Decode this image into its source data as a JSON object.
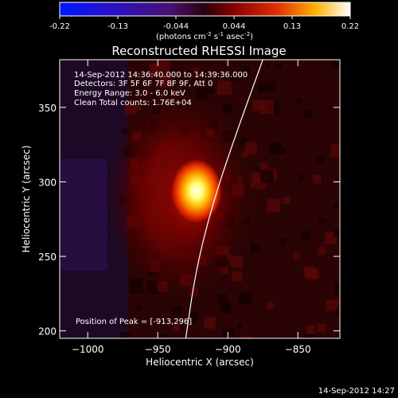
{
  "colorbar": {
    "ticks": [
      "-0.22",
      "-0.13",
      "-0.044",
      "0.044",
      "0.13",
      "0.22"
    ],
    "units": "(photons cm",
    "units_exp1": "-2",
    "units_mid": " s",
    "units_exp2": "-1",
    "units_end": " asec",
    "units_exp3": "-2",
    "units_close": ")",
    "range": [
      -0.22,
      0.22
    ]
  },
  "chart_data": {
    "type": "heatmap",
    "title": "Reconstructed RHESSI Image",
    "xlabel": "Heliocentric X (arcsec)",
    "ylabel": "Heliocentric Y (arcsec)",
    "xlim": [
      -1020,
      -820
    ],
    "ylim": [
      195,
      382
    ],
    "xticks": [
      -1000,
      -950,
      -900,
      -850
    ],
    "yticks": [
      200,
      250,
      300,
      350
    ],
    "peak": {
      "x": -913,
      "y": 296
    },
    "limb_curve": [
      [
        -930,
        195
      ],
      [
        -923,
        240
      ],
      [
        -911,
        285
      ],
      [
        -895,
        330
      ],
      [
        -875,
        382
      ]
    ],
    "info_lines": [
      "14-Sep-2012 14:36:40.000 to 14:39:36.000",
      "Detectors: 3F 5F 6F 7F 8F 9F, Att 0",
      "Energy Range: 3.0 - 6.0 keV",
      "Clean    Total counts: 1.76E+04"
    ],
    "peak_label": "Position of Peak = [-913,296]"
  },
  "footer": {
    "timestamp": "14-Sep-2012 14:27"
  }
}
